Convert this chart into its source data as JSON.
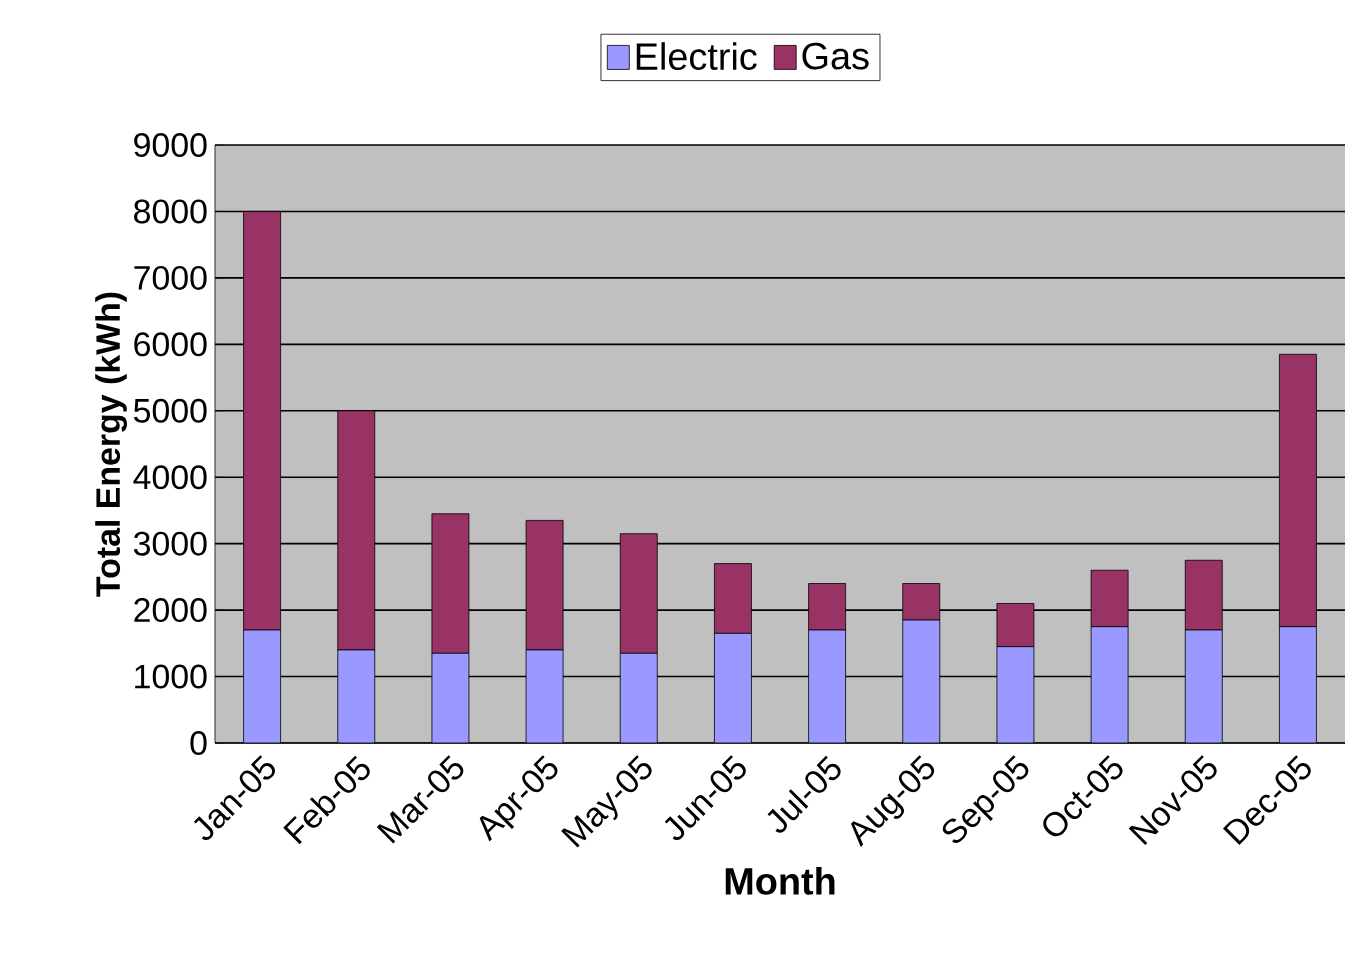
{
  "chart_data": {
    "type": "bar",
    "stacked": true,
    "xlabel": "Month",
    "ylabel": "Total Energy (kWh)",
    "categories": [
      "Jan-05",
      "Feb-05",
      "Mar-05",
      "Apr-05",
      "May-05",
      "Jun-05",
      "Jul-05",
      "Aug-05",
      "Sep-05",
      "Oct-05",
      "Nov-05",
      "Dec-05"
    ],
    "series": [
      {
        "name": "Electric",
        "color": "#9999ff",
        "values": [
          1700,
          1400,
          1350,
          1400,
          1350,
          1650,
          1700,
          1850,
          1450,
          1750,
          1700,
          1750
        ]
      },
      {
        "name": "Gas",
        "color": "#993366",
        "values": [
          6300,
          3600,
          2100,
          1950,
          1800,
          1050,
          700,
          550,
          650,
          850,
          1050,
          4100
        ]
      }
    ],
    "ylim": [
      0,
      9000
    ],
    "yticks": [
      0,
      1000,
      2000,
      3000,
      4000,
      5000,
      6000,
      7000,
      8000,
      9000
    ],
    "grid": "y",
    "legend": "top"
  }
}
